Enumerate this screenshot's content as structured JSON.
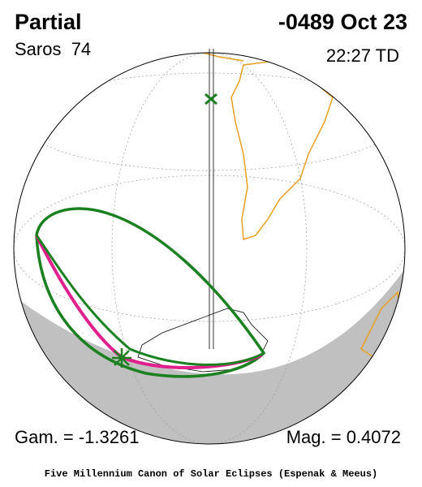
{
  "header": {
    "title": "Partial",
    "date": "-0489 Oct 23",
    "saros": "Saros  74",
    "time": "22:27 TD"
  },
  "footer": {
    "gamma": "Gam. = -1.3261",
    "magnitude": "Mag. = 0.4072",
    "credit": "Five Millennium Canon of Solar Eclipses (Espenak & Meeus)"
  }
}
